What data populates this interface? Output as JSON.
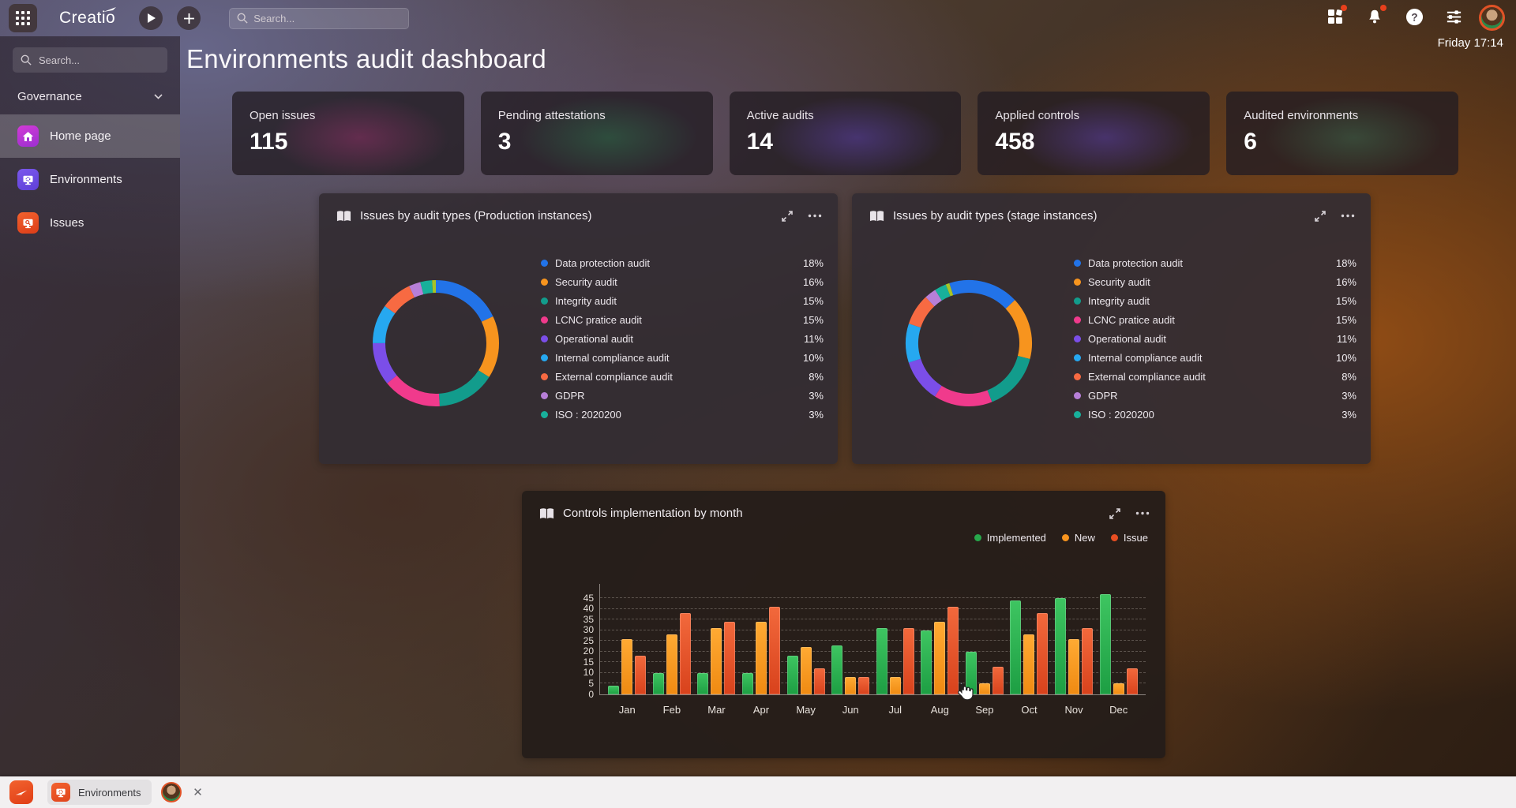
{
  "topbar": {
    "logo": "Creatio",
    "search_placeholder": "Search...",
    "datetime": "Friday 17:14"
  },
  "sidebar": {
    "search_placeholder": "Search...",
    "workspace_label": "Governance",
    "items": [
      {
        "label": "Home page",
        "icon": "home-icon",
        "color_a": "#d23ad6",
        "color_b": "#9c2fd1",
        "active": true
      },
      {
        "label": "Environments",
        "icon": "monitor-gear-icon",
        "color_a": "#7a58ec",
        "color_b": "#5f3fd8",
        "active": false
      },
      {
        "label": "Issues",
        "icon": "monitor-search-icon",
        "color_a": "#f2622e",
        "color_b": "#dc3d18",
        "active": false
      }
    ]
  },
  "page": {
    "title": "Environments audit dashboard"
  },
  "kpis": [
    {
      "label": "Open issues",
      "value": "115",
      "glow": "#b03478"
    },
    {
      "label": "Pending attestations",
      "value": "3",
      "glow": "#2f8752"
    },
    {
      "label": "Active audits",
      "value": "14",
      "glow": "#6e4cd8"
    },
    {
      "label": "Applied controls",
      "value": "458",
      "glow": "#6e4cd8"
    },
    {
      "label": "Audited environments",
      "value": "6",
      "glow": "#44805c"
    }
  ],
  "chart_data": [
    {
      "type": "donut",
      "title": "Issues by audit types (Production instances)",
      "categories": [
        "Data protection audit",
        "Security audit",
        "Integrity audit",
        "LCNC pratice audit",
        "Operational audit",
        "Internal compliance audit",
        "External compliance audit",
        "GDPR",
        "ISO : 2020200"
      ],
      "values": [
        18,
        16,
        15,
        15,
        11,
        10,
        8,
        3,
        3
      ],
      "value_labels": [
        "18%",
        "16%",
        "15%",
        "15%",
        "11%",
        "10%",
        "8%",
        "3%",
        "3%"
      ],
      "colors": [
        "#2273e8",
        "#f7941e",
        "#129c8c",
        "#f03a8c",
        "#7b4ee8",
        "#26a8f0",
        "#f76a42",
        "#b77fd8",
        "#18b09b"
      ],
      "extra_slice": {
        "value": 1,
        "color": "#a6c428"
      },
      "rotation_deg": 0,
      "legend_position": "right"
    },
    {
      "type": "donut",
      "title": "Issues by audit types (stage instances)",
      "categories": [
        "Data protection audit",
        "Security audit",
        "Integrity audit",
        "LCNC pratice audit",
        "Operational audit",
        "Internal compliance audit",
        "External compliance audit",
        "GDPR",
        "ISO : 2020200"
      ],
      "values": [
        18,
        16,
        15,
        15,
        11,
        10,
        8,
        3,
        3
      ],
      "value_labels": [
        "18%",
        "16%",
        "15%",
        "15%",
        "11%",
        "10%",
        "8%",
        "3%",
        "3%"
      ],
      "colors": [
        "#2273e8",
        "#f7941e",
        "#129c8c",
        "#f03a8c",
        "#7b4ee8",
        "#26a8f0",
        "#f76a42",
        "#b77fd8",
        "#18b09b"
      ],
      "extra_slice": {
        "value": 1,
        "color": "#a6c428"
      },
      "rotation_deg": -18,
      "legend_position": "right"
    },
    {
      "type": "bar",
      "title": "Controls implementation by month",
      "categories": [
        "Jan",
        "Feb",
        "Mar",
        "Apr",
        "May",
        "Jun",
        "Jul",
        "Aug",
        "Sep",
        "Oct",
        "Nov",
        "Dec"
      ],
      "series": [
        {
          "name": "Implemented",
          "color_a": "#3ec561",
          "color_b": "#1d9e43",
          "dot": "#27a84b",
          "values": [
            4,
            10,
            10,
            10,
            18,
            23,
            31,
            30,
            20,
            44,
            45,
            47
          ]
        },
        {
          "name": "New",
          "color_a": "#ffaa33",
          "color_b": "#ef8a12",
          "dot": "#f7941e",
          "values": [
            26,
            28,
            31,
            34,
            22,
            8,
            8,
            34,
            5,
            28,
            26,
            5
          ]
        },
        {
          "name": "Issue",
          "color_a": "#f2693c",
          "color_b": "#d8421c",
          "dot": "#e84e22",
          "values": [
            18,
            38,
            34,
            41,
            12,
            8,
            31,
            41,
            13,
            38,
            31,
            12
          ]
        }
      ],
      "yticks": [
        0,
        5,
        10,
        15,
        20,
        25,
        30,
        35,
        40,
        45
      ],
      "ylim": [
        0,
        48
      ],
      "grid": "dashed-horizontal",
      "legend_position": "top-right"
    }
  ],
  "taskbar": {
    "tab_label": "Environments",
    "close_glyph": "✕"
  }
}
